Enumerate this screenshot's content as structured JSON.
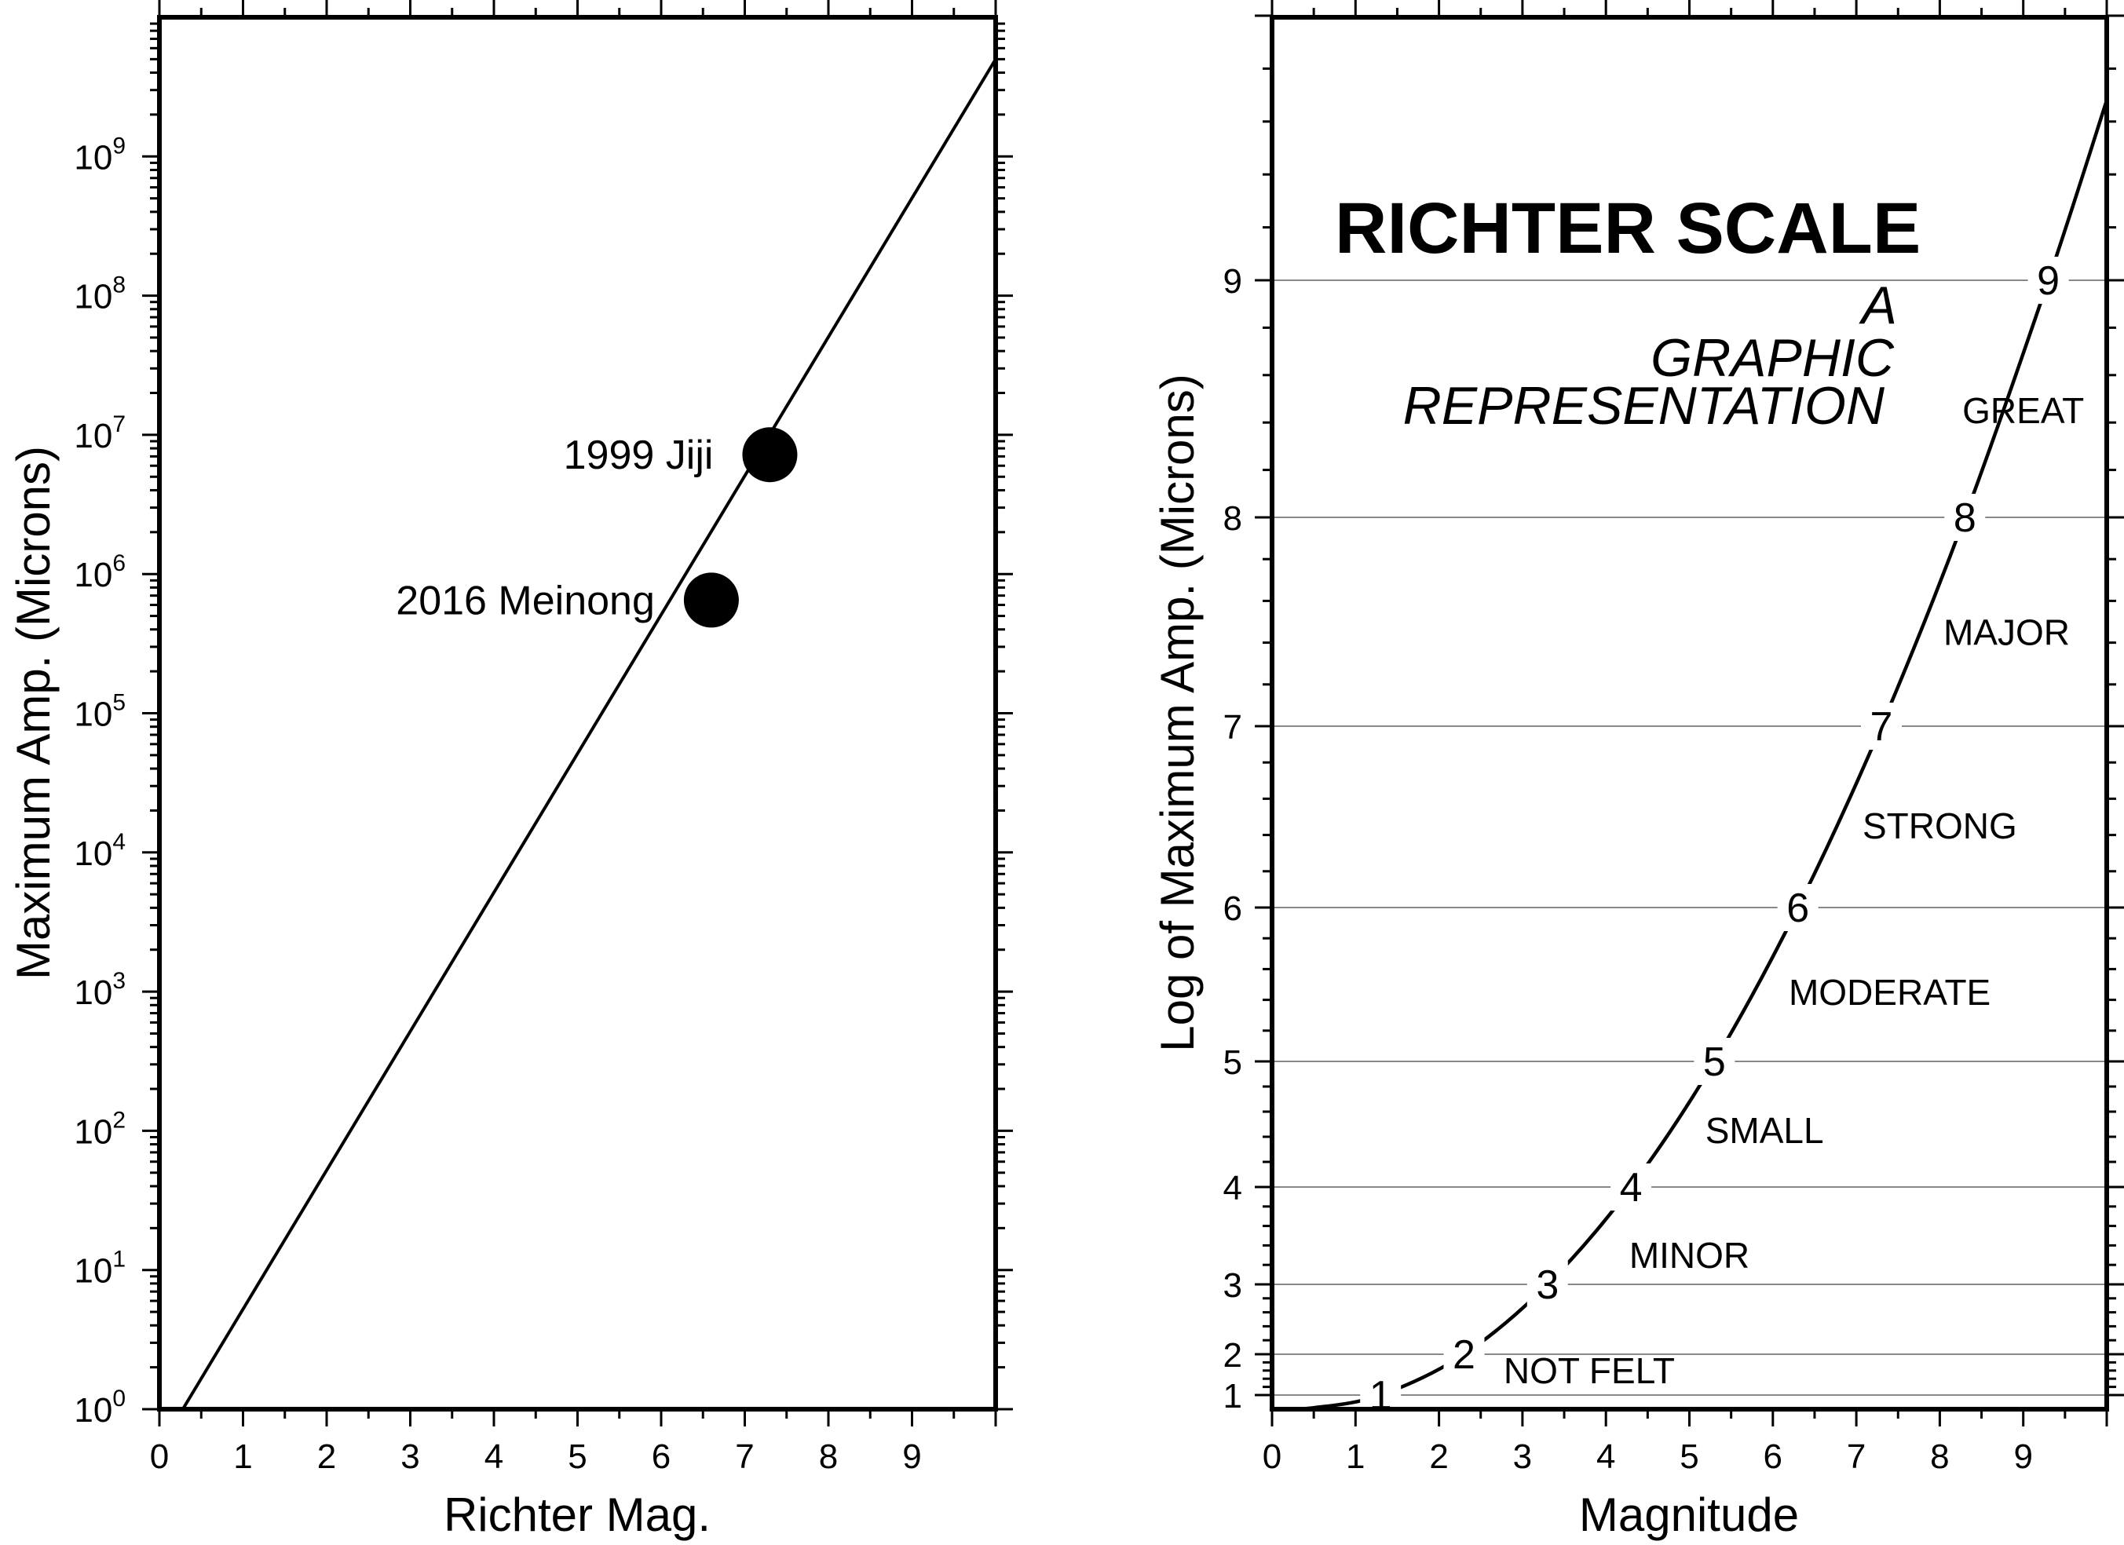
{
  "chart_data": [
    {
      "type": "line",
      "xlabel": "Richter Mag.",
      "ylabel": "Maximum Amp. (Microns)",
      "xlim": [
        0,
        10
      ],
      "ylim": [
        1,
        10000000000
      ],
      "yscale": "log",
      "grid": false,
      "x_ticks": [
        "0",
        "1",
        "2",
        "3",
        "4",
        "5",
        "6",
        "7",
        "8",
        "9"
      ],
      "y_ticks": [
        {
          "base": "10",
          "exp": "0"
        },
        {
          "base": "10",
          "exp": "1"
        },
        {
          "base": "10",
          "exp": "2"
        },
        {
          "base": "10",
          "exp": "3"
        },
        {
          "base": "10",
          "exp": "4"
        },
        {
          "base": "10",
          "exp": "5"
        },
        {
          "base": "10",
          "exp": "6"
        },
        {
          "base": "10",
          "exp": "7"
        },
        {
          "base": "10",
          "exp": "8"
        },
        {
          "base": "10",
          "exp": "9"
        }
      ],
      "series": [
        {
          "values": [
            [
              0.28,
              1
            ],
            [
              10,
              5000000000
            ]
          ]
        }
      ],
      "points": [
        {
          "label": "1999 Jiji",
          "x": 7.3,
          "y": 7200000
        },
        {
          "label": "2016 Meinong",
          "x": 6.6,
          "y": 650000
        }
      ]
    },
    {
      "type": "line",
      "title": "RICHTER SCALE",
      "subtitle": [
        "A",
        "GRAPHIC",
        "REPRESENTATION"
      ],
      "xlabel": "Magnitude",
      "ylabel": "Log of Maximum Amp. (Microns)",
      "xlim": [
        0,
        10
      ],
      "ylim": [
        0.8,
        10
      ],
      "grid": true,
      "x_ticks": [
        "0",
        "1",
        "2",
        "3",
        "4",
        "5",
        "6",
        "7",
        "8",
        "9"
      ],
      "y_ticks": [
        "1",
        "2",
        "3",
        "4",
        "5",
        "6",
        "7",
        "8",
        "9"
      ],
      "curve_labels": [
        {
          "text": "1",
          "x": 1.3,
          "y": 1.0
        },
        {
          "text": "2",
          "x": 2.3,
          "y": 2.0
        },
        {
          "text": "3",
          "x": 3.3,
          "y": 3.0
        },
        {
          "text": "4",
          "x": 4.3,
          "y": 4.0
        },
        {
          "text": "5",
          "x": 5.3,
          "y": 5.0
        },
        {
          "text": "6",
          "x": 6.3,
          "y": 6.0
        },
        {
          "text": "7",
          "x": 7.3,
          "y": 7.0
        },
        {
          "text": "8",
          "x": 8.3,
          "y": 8.0
        },
        {
          "text": "9",
          "x": 9.3,
          "y": 9.0
        }
      ],
      "categories": [
        {
          "text": "NOT FELT",
          "x": 3.8,
          "y": 1.6
        },
        {
          "text": "MINOR",
          "x": 5.0,
          "y": 3.3
        },
        {
          "text": "SMALL",
          "x": 5.9,
          "y": 4.45
        },
        {
          "text": "MODERATE",
          "x": 7.4,
          "y": 5.45
        },
        {
          "text": "STRONG",
          "x": 8.0,
          "y": 6.45
        },
        {
          "text": "MAJOR",
          "x": 8.8,
          "y": 7.45
        },
        {
          "text": "GREAT",
          "x": 9.0,
          "y": 8.45
        }
      ]
    }
  ]
}
